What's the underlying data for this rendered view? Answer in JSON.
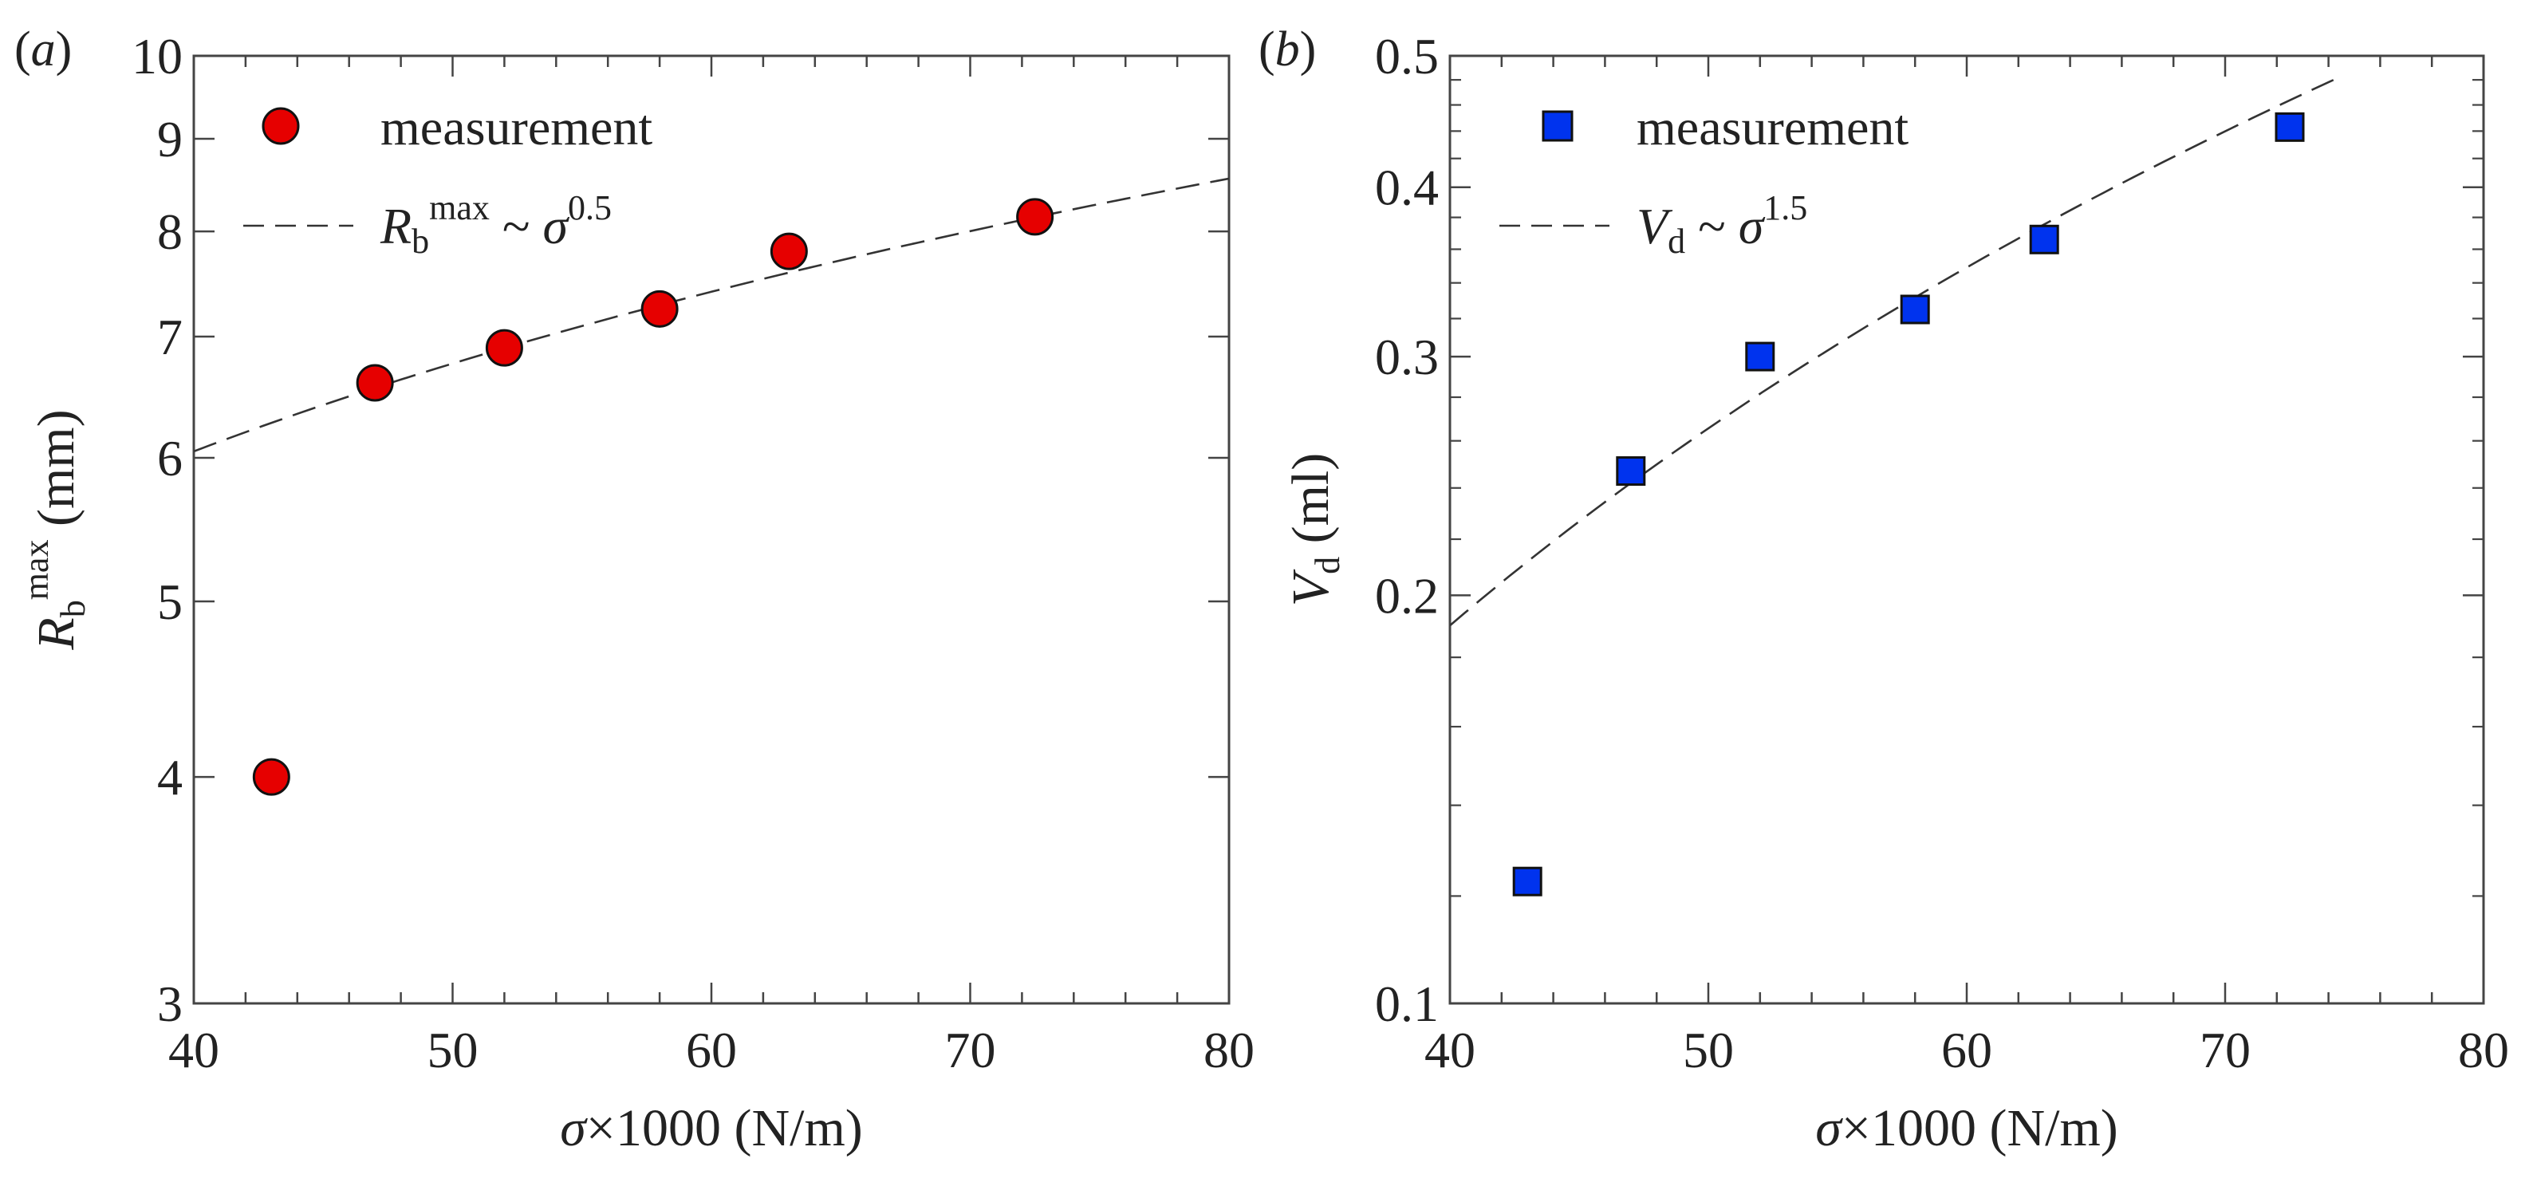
{
  "chart_data": [
    {
      "type": "scatter",
      "panel_label": "(a)",
      "xscale": "linear",
      "yscale": "log",
      "xlim": [
        40,
        80
      ],
      "ylim": [
        3,
        10
      ],
      "xticks": [
        40,
        50,
        60,
        70,
        80
      ],
      "yticks": [
        3,
        4,
        5,
        6,
        7,
        8,
        9,
        10
      ],
      "xlabel": "σ×1000 (N/m)",
      "ylabel": {
        "base": "R",
        "sub": "b",
        "sup": "max",
        "unit": " (mm)"
      },
      "series": [
        {
          "name": "measurement",
          "marker": "circle",
          "color": "#e60000",
          "x": [
            43,
            47,
            52,
            58,
            63,
            72.5
          ],
          "y": [
            4.0,
            6.6,
            6.9,
            7.25,
            7.8,
            8.15
          ]
        }
      ],
      "fit": {
        "name": "power-law fit",
        "exponent": 0.5,
        "anchor_x": 40,
        "anchor_y": 6.05,
        "x_end": 80
      },
      "legend": {
        "position": "top-left",
        "measurement": "measurement",
        "fit": {
          "base": "R",
          "sub": "b",
          "sup": "max",
          "op": " ~ ",
          "sym": "σ",
          "exp": "0.5"
        }
      }
    },
    {
      "type": "scatter",
      "panel_label": "(b)",
      "xscale": "linear",
      "yscale": "log",
      "xlim": [
        40,
        80
      ],
      "ylim": [
        0.1,
        0.5
      ],
      "xticks": [
        40,
        50,
        60,
        70,
        80
      ],
      "yticks": [
        0.1,
        0.2,
        0.3,
        0.4,
        0.5
      ],
      "xlabel": "σ×1000 (N/m)",
      "ylabel": {
        "base": "V",
        "sub": "d",
        "sup": "",
        "unit": " (ml)"
      },
      "series": [
        {
          "name": "measurement",
          "marker": "square",
          "color": "#0033ee",
          "x": [
            43,
            47,
            52,
            58,
            63,
            72.5
          ],
          "y": [
            0.123,
            0.247,
            0.3,
            0.325,
            0.366,
            0.443
          ]
        }
      ],
      "fit": {
        "name": "power-law fit",
        "exponent": 1.5,
        "anchor_x": 40,
        "anchor_y": 0.19,
        "x_end": 74.5
      },
      "legend": {
        "position": "top-left",
        "measurement": "measurement",
        "fit": {
          "base": "V",
          "sub": "d",
          "sup": "",
          "op": " ~ ",
          "sym": "σ",
          "exp": "1.5"
        }
      }
    }
  ]
}
